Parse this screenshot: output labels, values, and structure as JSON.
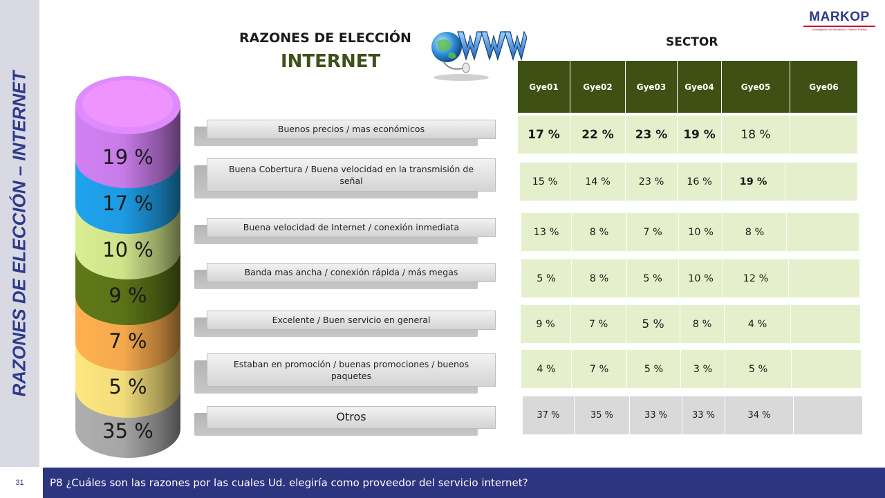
{
  "side_title": "RAZONES DE ELECCIÓN – INTERNET",
  "page_number": "31",
  "footer_question": "P8 ¿Cuáles son las razones por las cuales Ud. elegiría como proveedor del servicio internet?",
  "header": {
    "title_line1": "RAZONES DE ELECCIÓN",
    "title_line2": "INTERNET",
    "sector_label": "SECTOR"
  },
  "brand": {
    "name": "MARKOP",
    "tagline": "Investigación de Mercados y Opinión Pública"
  },
  "colors": {
    "accent_green": "#3e5013",
    "footer_blue": "#2d3480",
    "brand_red": "#c8102e"
  },
  "cylinder": {
    "segments": [
      {
        "label": "19 %",
        "color": "#c77be8"
      },
      {
        "label": "17 %",
        "color": "#1d9be3"
      },
      {
        "label": "10 %",
        "color": "#cfe38a"
      },
      {
        "label": "9 %",
        "color": "#5a7317"
      },
      {
        "label": "7 %",
        "color": "#f5a94c"
      },
      {
        "label": "5 %",
        "color": "#f2dc7a"
      },
      {
        "label": "35 %",
        "color": "#a6a6a6"
      }
    ]
  },
  "reasons": [
    "Buenos precios / mas económicos",
    "Buena Cobertura / Buena velocidad en la transmisión de señal",
    "Buena velocidad de Internet / conexión inmediata",
    "Banda mas ancha / conexión rápida / más megas",
    "Excelente / Buen servicio en general",
    "Estaban en promoción / buenas promociones / buenos paquetes",
    "Otros"
  ],
  "table": {
    "columns": [
      "Gye01",
      "Gye02",
      "Gye03",
      "Gye04",
      "Gye05",
      "Gye06"
    ],
    "rows": [
      [
        "17 %",
        "22 %",
        "23 %",
        "19 %",
        "18 %",
        ""
      ],
      [
        "15 %",
        "14 %",
        "23 %",
        "16 %",
        "19 %",
        ""
      ],
      [
        "13 %",
        "8 %",
        "7 %",
        "10 %",
        "8 %",
        ""
      ],
      [
        "5 %",
        "8 %",
        "5 %",
        "10 %",
        "12 %",
        ""
      ],
      [
        "9 %",
        "7 %",
        "5 %",
        "8 %",
        "4 %",
        ""
      ],
      [
        "4 %",
        "7 %",
        "5 %",
        "3 %",
        "5 %",
        ""
      ],
      [
        "37 %",
        "35 %",
        "33 %",
        "33 %",
        "34 %",
        ""
      ]
    ]
  }
}
